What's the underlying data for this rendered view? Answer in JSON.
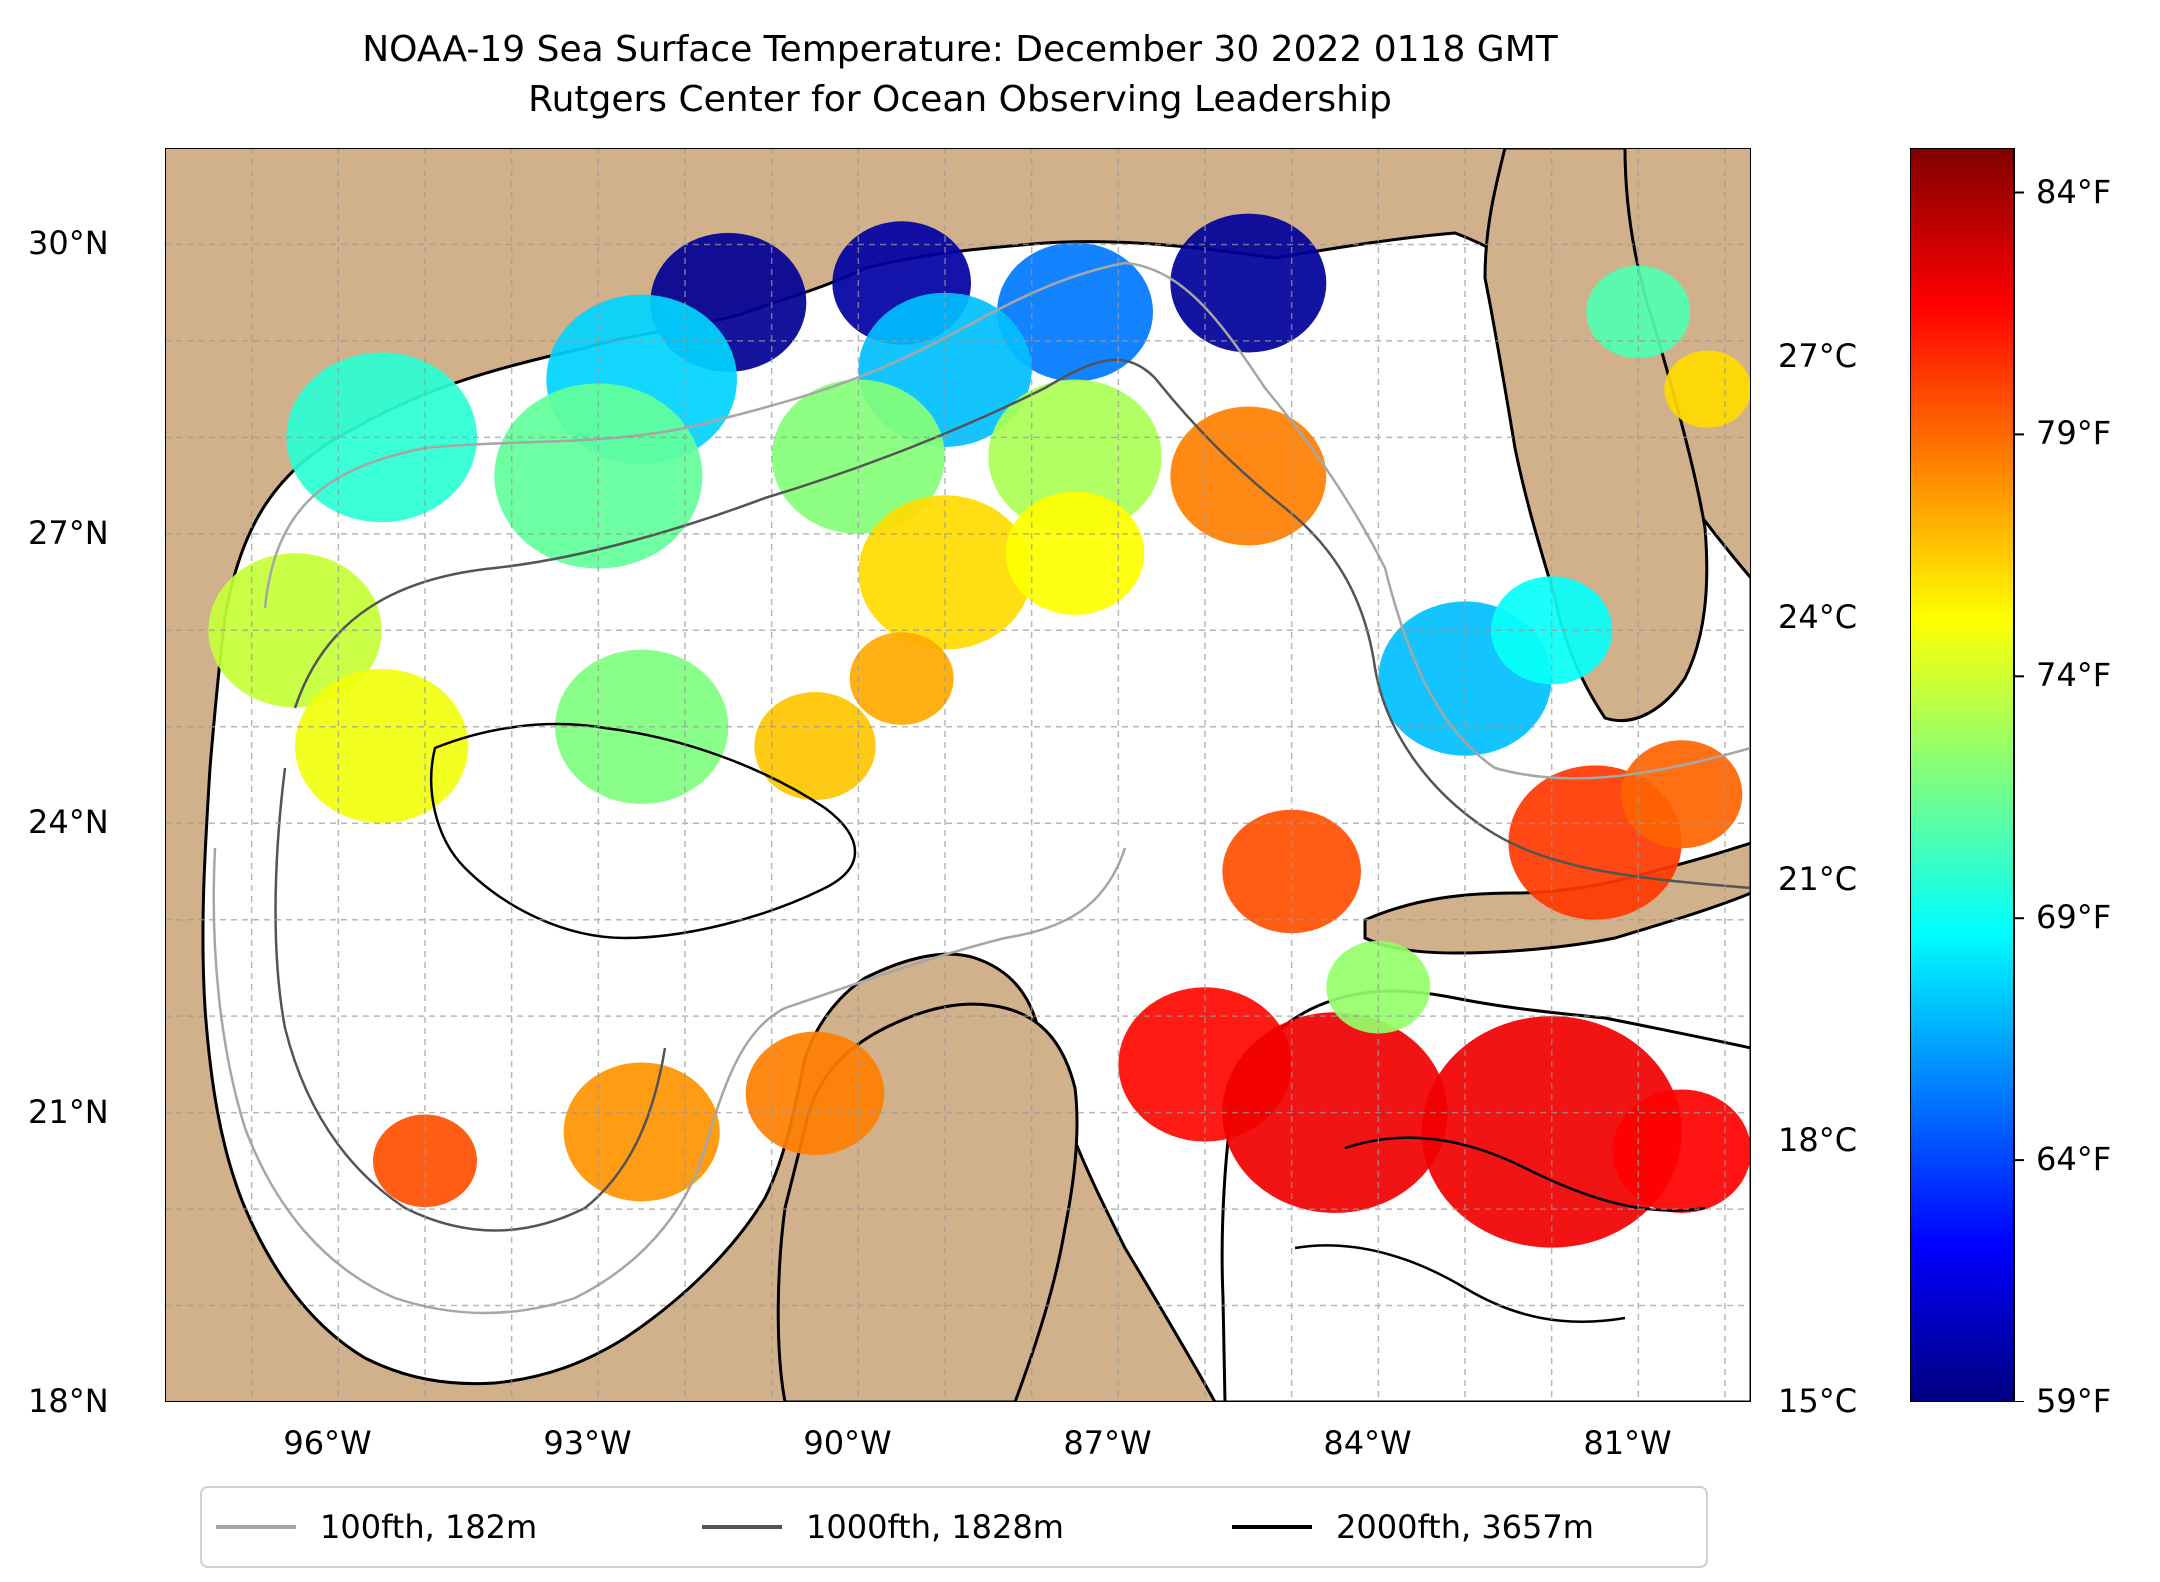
{
  "title": {
    "line1": "NOAA-19 Sea Surface Temperature: December 30 2022 0118 GMT",
    "line2": "Rutgers Center for Ocean Observing Leadership"
  },
  "map": {
    "extent": {
      "lon_min": -98.0,
      "lon_max": -79.7,
      "lat_min": 18.0,
      "lat_max": 31.0
    },
    "longitude_ticks": [
      {
        "value": -96,
        "label": "96°W"
      },
      {
        "value": -93,
        "label": "93°W"
      },
      {
        "value": -90,
        "label": "90°W"
      },
      {
        "value": -87,
        "label": "87°W"
      },
      {
        "value": -84,
        "label": "84°W"
      },
      {
        "value": -81,
        "label": "81°W"
      }
    ],
    "latitude_ticks": [
      {
        "value": 30,
        "label": "30°N"
      },
      {
        "value": 27,
        "label": "27°N"
      },
      {
        "value": 24,
        "label": "24°N"
      },
      {
        "value": 21,
        "label": "21°N"
      },
      {
        "value": 18,
        "label": "18°N"
      }
    ],
    "gridlines": "dashed",
    "land_color": "#d0b18b",
    "no_data_color": "#ffffff"
  },
  "colorbar": {
    "celsius_ticks": [
      {
        "value": 27,
        "label": "27°C"
      },
      {
        "value": 24,
        "label": "24°C"
      },
      {
        "value": 21,
        "label": "21°C"
      },
      {
        "value": 18,
        "label": "18°C"
      },
      {
        "value": 15,
        "label": "15°C"
      }
    ],
    "fahrenheit_ticks": [
      {
        "value": 84,
        "label": "84°F"
      },
      {
        "value": 79,
        "label": "79°F"
      },
      {
        "value": 74,
        "label": "74°F"
      },
      {
        "value": 69,
        "label": "69°F"
      },
      {
        "value": 64,
        "label": "64°F"
      },
      {
        "value": 59,
        "label": "59°F"
      }
    ],
    "range_celsius": [
      15,
      29.4
    ],
    "colormap": "jet",
    "colormap_stops": [
      "#00007f",
      "#0000ff",
      "#007fff",
      "#00ffff",
      "#7fff7f",
      "#ffff00",
      "#ff7f00",
      "#ff0000",
      "#7f0000"
    ]
  },
  "legend": {
    "placement": "bottom-center",
    "items": [
      {
        "label": "100fth, 182m",
        "color": "#a6a6a6"
      },
      {
        "label": "1000fth, 1828m",
        "color": "#545454"
      },
      {
        "label": "2000fth, 3657m",
        "color": "#000000"
      }
    ]
  }
}
